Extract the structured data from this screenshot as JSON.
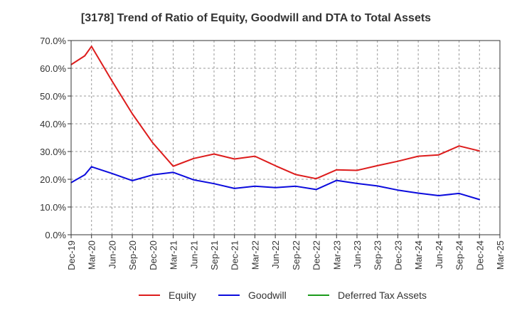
{
  "chart_data": {
    "type": "line",
    "title": "[3178]  Trend of Ratio of Equity, Goodwill and DTA to Total Assets",
    "xlabel": "",
    "ylabel": "",
    "ylim": [
      0,
      70
    ],
    "y_ticks": [
      "0.0%",
      "10.0%",
      "20.0%",
      "30.0%",
      "40.0%",
      "50.0%",
      "60.0%",
      "70.0%"
    ],
    "x_ticks": [
      "Dec-19",
      "Mar-20",
      "Jun-20",
      "Sep-20",
      "Dec-20",
      "Mar-21",
      "Jun-21",
      "Sep-21",
      "Dec-21",
      "Mar-22",
      "Jun-22",
      "Sep-22",
      "Dec-22",
      "Mar-23",
      "Jun-23",
      "Sep-23",
      "Dec-23",
      "Mar-24",
      "Jun-24",
      "Sep-24",
      "Dec-24",
      "Mar-25"
    ],
    "x_range_quarters": [
      0,
      21
    ],
    "grid": true,
    "legend_position": "bottom",
    "series": [
      {
        "name": "Equity",
        "color": "#dd1c1c",
        "points": [
          [
            0,
            61.3
          ],
          [
            0.67,
            64.5
          ],
          [
            1,
            67.9
          ],
          [
            2,
            55.5
          ],
          [
            3,
            43.6
          ],
          [
            4,
            33.1
          ],
          [
            5,
            24.7
          ],
          [
            6,
            27.5
          ],
          [
            7,
            29.1
          ],
          [
            8,
            27.3
          ],
          [
            9,
            28.3
          ],
          [
            10,
            24.9
          ],
          [
            11,
            21.7
          ],
          [
            12,
            20.2
          ],
          [
            13,
            23.4
          ],
          [
            14,
            23.2
          ],
          [
            15,
            24.9
          ],
          [
            16,
            26.5
          ],
          [
            17,
            28.3
          ],
          [
            18,
            28.8
          ],
          [
            19,
            32.0
          ],
          [
            20,
            30.2
          ]
        ]
      },
      {
        "name": "Goodwill",
        "color": "#0b0bdd",
        "points": [
          [
            0,
            18.8
          ],
          [
            0.67,
            21.6
          ],
          [
            1,
            24.5
          ],
          [
            2,
            22.1
          ],
          [
            3,
            19.5
          ],
          [
            4,
            21.6
          ],
          [
            5,
            22.5
          ],
          [
            6,
            19.8
          ],
          [
            7,
            18.4
          ],
          [
            8,
            16.7
          ],
          [
            9,
            17.5
          ],
          [
            10,
            17.0
          ],
          [
            11,
            17.5
          ],
          [
            12,
            16.3
          ],
          [
            13,
            19.6
          ],
          [
            14,
            18.5
          ],
          [
            15,
            17.6
          ],
          [
            16,
            16.1
          ],
          [
            17,
            15.0
          ],
          [
            18,
            14.1
          ],
          [
            19,
            14.9
          ],
          [
            20,
            12.7
          ]
        ]
      },
      {
        "name": "Deferred Tax Assets",
        "color": "#1b9a1b",
        "points": []
      }
    ]
  }
}
